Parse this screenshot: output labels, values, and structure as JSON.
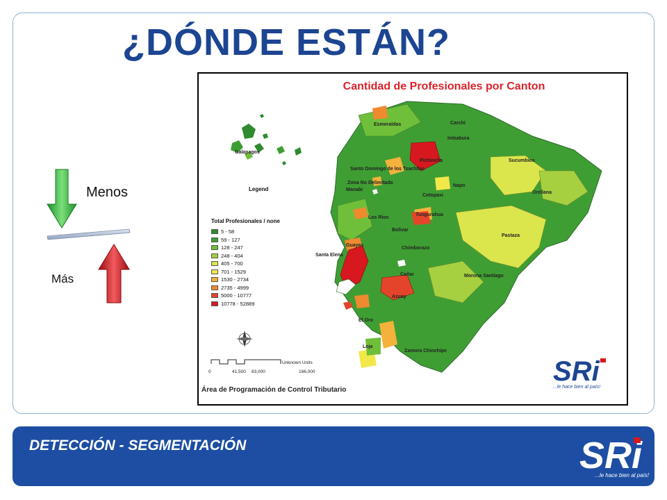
{
  "slide": {
    "title": "¿DÓNDE ESTÁN?",
    "arrow_labels": {
      "top": "Menos",
      "bottom": "Más"
    }
  },
  "map": {
    "title": "Cantidad de Profesionales por Canton",
    "legend": {
      "label": "Legend",
      "heading": "Total Profesionales / none",
      "classes": [
        {
          "range": "5 - 58",
          "color": "#2f8a2f"
        },
        {
          "range": "59 - 127",
          "color": "#3f9e33"
        },
        {
          "range": "128 - 247",
          "color": "#6fbf3a"
        },
        {
          "range": "248 - 404",
          "color": "#a6d040"
        },
        {
          "range": "405 - 700",
          "color": "#dbe64d"
        },
        {
          "range": "701 - 1529",
          "color": "#f3e84a"
        },
        {
          "range": "1530 - 2734",
          "color": "#f4b23c"
        },
        {
          "range": "2735 - 4999",
          "color": "#ef8a2f"
        },
        {
          "range": "5000 - 10777",
          "color": "#e4452a"
        },
        {
          "range": "10778 - 52889",
          "color": "#d8181f"
        }
      ]
    },
    "places": {
      "galapagos": "Galapagos",
      "esmeraldas": "Esmeraldas",
      "carchi": "Carchi",
      "imbabura": "Imbabura",
      "pichincha": "Pichincha",
      "sucumbios": "Sucumbios",
      "santo_domingo": "Santo Domingo de los Tsachilas",
      "zona_no_delimitada": "Zona No Delimitada",
      "manabi": "Manabi",
      "napo": "Napo",
      "orellana": "Orellana",
      "cotopaxi": "Cotopaxi",
      "los_rios": "Los Rios",
      "tungurahua": "Tungurahua",
      "bolivar": "Bolivar",
      "pastaza": "Pastaza",
      "guayas": "Guayas",
      "chimborazo": "Chimborazo",
      "santa_elena": "Santa Elena",
      "canar": "Cañar",
      "morona_santiago": "Morona Santiago",
      "azuay": "Azuay",
      "el_oro": "El Oro",
      "loja": "Loja",
      "zamora_chinchipe": "Zamora Chinchipe"
    },
    "scale": {
      "units": "Unknown Units",
      "ticks": [
        "0",
        "41,500",
        "83,000",
        "166,000"
      ]
    },
    "footer": "Área de Programación de Control Tributario",
    "logo": {
      "text": "SRi",
      "tagline": "...le hace bien al país!"
    }
  },
  "footer": {
    "section_label": "DETECCIÓN - SEGMENTACIÓN",
    "logo_text": "SRi",
    "logo_tagline": "...le hace bien al país!"
  }
}
